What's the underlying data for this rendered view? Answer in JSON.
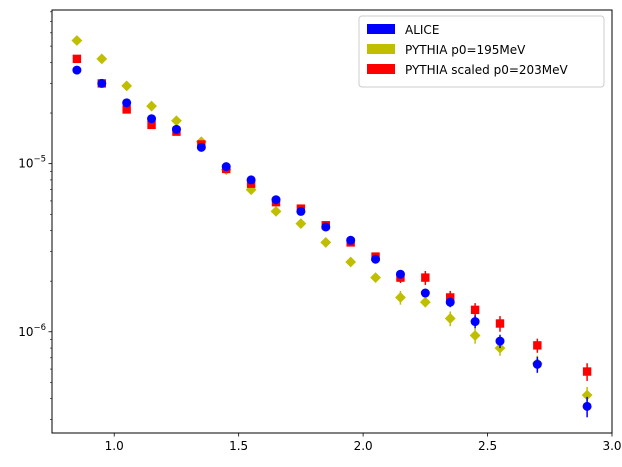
{
  "chart_data": {
    "type": "scatter",
    "title": "",
    "xlabel": "",
    "ylabel": "",
    "xlim": [
      0.75,
      3.0
    ],
    "ylim": [
      2.5e-07,
      8.2e-05
    ],
    "yscale": "log",
    "grid": false,
    "legend_position": "top-right",
    "x_ticks": [
      1.0,
      1.5,
      2.0,
      2.5,
      3.0
    ],
    "x_tick_labels": [
      "1.0",
      "1.5",
      "2.0",
      "2.5",
      "3.0"
    ],
    "y_major_ticks": [
      1e-06,
      1e-05
    ],
    "y_tick_labels": [
      {
        "base": "10",
        "exp": "−6"
      },
      {
        "base": "10",
        "exp": "−5"
      }
    ],
    "series": [
      {
        "name": "ALICE",
        "color": "#0000ff",
        "marker": "circle",
        "x": [
          0.85,
          0.95,
          1.05,
          1.15,
          1.25,
          1.35,
          1.45,
          1.55,
          1.65,
          1.75,
          1.85,
          1.95,
          2.05,
          2.15,
          2.25,
          2.35,
          2.45,
          2.55,
          2.7,
          2.9
        ],
        "y": [
          3.6e-05,
          3e-05,
          2.3e-05,
          1.85e-05,
          1.6e-05,
          1.25e-05,
          9.6e-06,
          8e-06,
          6.1e-06,
          5.2e-06,
          4.2e-06,
          3.5e-06,
          2.7e-06,
          2.2e-06,
          1.7e-06,
          1.5e-06,
          1.15e-06,
          8.8e-07,
          6.4e-07,
          3.6e-07
        ],
        "err": [
          1e-06,
          8e-07,
          6e-07,
          5e-07,
          4e-07,
          3e-07,
          2.5e-07,
          2e-07,
          1.8e-07,
          1.6e-07,
          1.4e-07,
          1.3e-07,
          1.2e-07,
          1e-07,
          1e-07,
          1e-07,
          1e-07,
          8e-08,
          7e-08,
          5e-08
        ]
      },
      {
        "name": "PYTHIA p0=195MeV",
        "color": "#bfbf00",
        "marker": "diamond",
        "x": [
          0.85,
          0.95,
          1.05,
          1.15,
          1.25,
          1.35,
          1.45,
          1.55,
          1.65,
          1.75,
          1.85,
          1.95,
          2.05,
          2.15,
          2.25,
          2.35,
          2.45,
          2.55,
          2.7,
          2.9
        ],
        "y": [
          5.4e-05,
          4.2e-05,
          2.9e-05,
          2.2e-05,
          1.8e-05,
          1.35e-05,
          9.2e-06,
          7e-06,
          5.2e-06,
          4.4e-06,
          3.4e-06,
          2.6e-06,
          2.1e-06,
          1.6e-06,
          1.5e-06,
          1.2e-06,
          9.5e-07,
          8e-07,
          6.5e-07,
          4.2e-07
        ],
        "err": [
          1e-06,
          8e-07,
          6e-07,
          5e-07,
          4e-07,
          3e-07,
          2.5e-07,
          2e-07,
          1.8e-07,
          1.6e-07,
          1.4e-07,
          1.3e-07,
          1.2e-07,
          1.5e-07,
          1e-07,
          1.2e-07,
          1e-07,
          8e-08,
          7e-08,
          5e-08
        ]
      },
      {
        "name": "PYTHIA scaled p0=203MeV",
        "color": "#ff0000",
        "marker": "square",
        "x": [
          0.85,
          0.95,
          1.05,
          1.15,
          1.25,
          1.35,
          1.45,
          1.55,
          1.65,
          1.75,
          1.85,
          1.95,
          2.05,
          2.15,
          2.25,
          2.35,
          2.45,
          2.55,
          2.7,
          2.9
        ],
        "y": [
          4.2e-05,
          3e-05,
          2.1e-05,
          1.7e-05,
          1.55e-05,
          1.3e-05,
          9.3e-06,
          7.6e-06,
          5.9e-06,
          5.4e-06,
          4.3e-06,
          3.4e-06,
          2.8e-06,
          2.1e-06,
          2.1e-06,
          1.6e-06,
          1.35e-06,
          1.12e-06,
          8.3e-07,
          5.8e-07
        ],
        "err": [
          1e-06,
          8e-07,
          6e-07,
          5e-07,
          4e-07,
          3e-07,
          2.5e-07,
          2e-07,
          1.8e-07,
          1.6e-07,
          1.4e-07,
          1.3e-07,
          1.2e-07,
          1.5e-07,
          2e-07,
          1.5e-07,
          1.3e-07,
          1.2e-07,
          8e-08,
          7e-08
        ]
      }
    ]
  }
}
